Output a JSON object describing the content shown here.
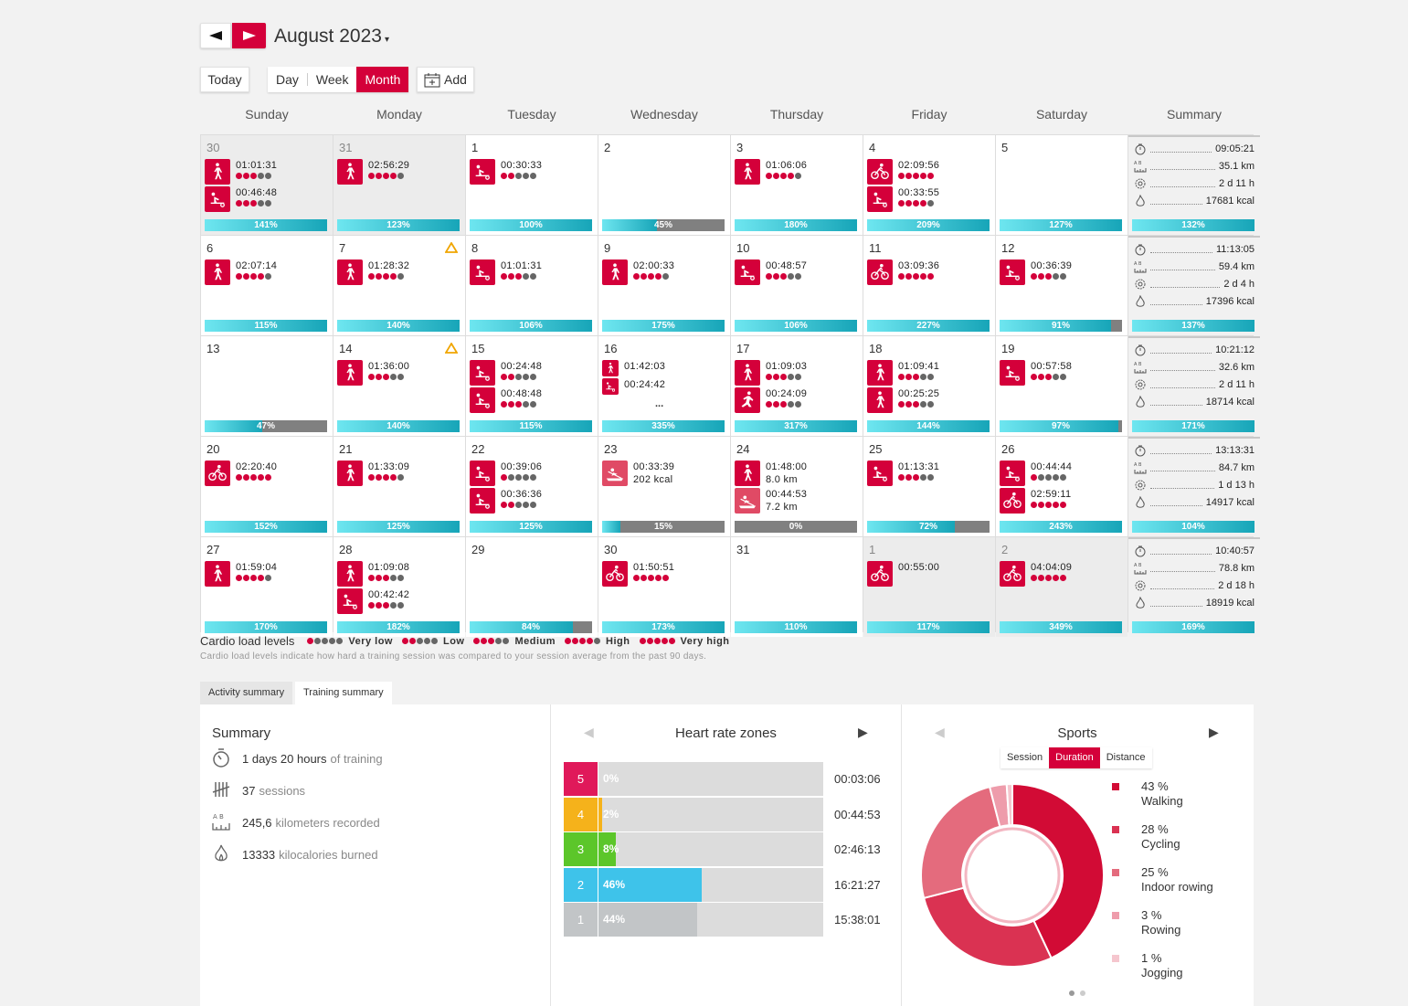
{
  "header": {
    "month": "August 2023",
    "prev_icon": "triangle-left-icon",
    "next_icon": "triangle-right-icon"
  },
  "toolbar": {
    "today": "Today",
    "day": "Day",
    "week": "Week",
    "month": "Month",
    "add": "Add"
  },
  "weekdays": [
    "Sunday",
    "Monday",
    "Tuesday",
    "Wednesday",
    "Thursday",
    "Friday",
    "Saturday",
    "Summary"
  ],
  "weeks": [
    {
      "days": [
        {
          "d": "30",
          "other": true,
          "s": [
            {
              "i": "walk",
              "t": "01:01:31",
              "l": 3
            },
            {
              "i": "row",
              "t": "00:46:48",
              "l": 3
            }
          ],
          "p": 141
        },
        {
          "d": "31",
          "other": true,
          "s": [
            {
              "i": "walk",
              "t": "02:56:29",
              "l": 4
            }
          ],
          "p": 123
        },
        {
          "d": "1",
          "s": [
            {
              "i": "row",
              "t": "00:30:33",
              "l": 2
            }
          ],
          "p": 100
        },
        {
          "d": "2",
          "s": [],
          "p": 45
        },
        {
          "d": "3",
          "s": [
            {
              "i": "walk",
              "t": "01:06:06",
              "l": 4
            }
          ],
          "p": 180
        },
        {
          "d": "4",
          "s": [
            {
              "i": "bike",
              "t": "02:09:56",
              "l": 5
            },
            {
              "i": "row",
              "t": "00:33:55",
              "l": 4
            }
          ],
          "p": 209
        },
        {
          "d": "5",
          "s": [],
          "p": 127
        }
      ],
      "sum": {
        "dur": "09:05:21",
        "dist": "35.1 km",
        "rec": "2 d 11 h",
        "kcal": "17681 kcal",
        "p": 132
      }
    },
    {
      "days": [
        {
          "d": "6",
          "s": [
            {
              "i": "walk",
              "t": "02:07:14",
              "l": 4
            }
          ],
          "p": 115
        },
        {
          "d": "7",
          "warn": true,
          "s": [
            {
              "i": "walk",
              "t": "01:28:32",
              "l": 4
            }
          ],
          "p": 140
        },
        {
          "d": "8",
          "s": [
            {
              "i": "row",
              "t": "01:01:31",
              "l": 3
            }
          ],
          "p": 106
        },
        {
          "d": "9",
          "s": [
            {
              "i": "walk",
              "t": "02:00:33",
              "l": 4
            }
          ],
          "p": 175
        },
        {
          "d": "10",
          "s": [
            {
              "i": "row",
              "t": "00:48:57",
              "l": 3
            }
          ],
          "p": 106
        },
        {
          "d": "11",
          "s": [
            {
              "i": "bike",
              "t": "03:09:36",
              "l": 5
            }
          ],
          "p": 227
        },
        {
          "d": "12",
          "s": [
            {
              "i": "row",
              "t": "00:36:39",
              "l": 3
            }
          ],
          "p": 91
        }
      ],
      "sum": {
        "dur": "11:13:05",
        "dist": "59.4 km",
        "rec": "2 d 4 h",
        "kcal": "17396 kcal",
        "p": 137
      }
    },
    {
      "days": [
        {
          "d": "13",
          "s": [],
          "p": 47
        },
        {
          "d": "14",
          "warn": true,
          "s": [
            {
              "i": "walk",
              "t": "01:36:00",
              "l": 3
            }
          ],
          "p": 140
        },
        {
          "d": "15",
          "s": [
            {
              "i": "row",
              "t": "00:24:48",
              "l": 2
            },
            {
              "i": "row",
              "t": "00:48:48",
              "l": 3
            }
          ],
          "p": 115
        },
        {
          "d": "16",
          "s": [
            {
              "i": "walk",
              "t": "01:42:03",
              "l": 0,
              "small": true
            },
            {
              "i": "row",
              "t": "00:24:42",
              "l": 0,
              "small": true
            }
          ],
          "more": "...",
          "p": 335
        },
        {
          "d": "17",
          "s": [
            {
              "i": "walk",
              "t": "01:09:03",
              "l": 3
            },
            {
              "i": "jog",
              "t": "00:24:09",
              "l": 3
            }
          ],
          "p": 317
        },
        {
          "d": "18",
          "s": [
            {
              "i": "walk",
              "t": "01:09:41",
              "l": 3
            },
            {
              "i": "walk",
              "t": "00:25:25",
              "l": 3
            }
          ],
          "p": 144
        },
        {
          "d": "19",
          "s": [
            {
              "i": "row",
              "t": "00:57:58",
              "l": 3
            }
          ],
          "p": 97
        }
      ],
      "sum": {
        "dur": "10:21:12",
        "dist": "32.6 km",
        "rec": "2 d 11 h",
        "kcal": "18714 kcal",
        "p": 171
      }
    },
    {
      "days": [
        {
          "d": "20",
          "s": [
            {
              "i": "bike",
              "t": "02:20:40",
              "l": 5
            }
          ],
          "p": 152
        },
        {
          "d": "21",
          "s": [
            {
              "i": "walk",
              "t": "01:33:09",
              "l": 4
            }
          ],
          "p": 125
        },
        {
          "d": "22",
          "s": [
            {
              "i": "row",
              "t": "00:39:06",
              "l": 1
            },
            {
              "i": "row",
              "t": "00:36:36",
              "l": 2
            }
          ],
          "p": 125
        },
        {
          "d": "23",
          "s": [
            {
              "i": "rowing",
              "t": "00:33:39",
              "t2": "202 kcal",
              "l": 0
            }
          ],
          "p": 15
        },
        {
          "d": "24",
          "s": [
            {
              "i": "walk",
              "t": "01:48:00",
              "t2": "8.0 km",
              "l": 0
            },
            {
              "i": "rowing",
              "t": "00:44:53",
              "t2": "7.2 km",
              "l": 0
            }
          ],
          "p": 0
        },
        {
          "d": "25",
          "s": [
            {
              "i": "row",
              "t": "01:13:31",
              "l": 3
            }
          ],
          "p": 72
        },
        {
          "d": "26",
          "s": [
            {
              "i": "row",
              "t": "00:44:44",
              "l": 1
            },
            {
              "i": "bike",
              "t": "02:59:11",
              "l": 5
            }
          ],
          "p": 243
        }
      ],
      "sum": {
        "dur": "13:13:31",
        "dist": "84.7 km",
        "rec": "1 d 13 h",
        "kcal": "14917 kcal",
        "p": 104
      }
    },
    {
      "days": [
        {
          "d": "27",
          "s": [
            {
              "i": "walk",
              "t": "01:59:04",
              "l": 4
            }
          ],
          "p": 170
        },
        {
          "d": "28",
          "s": [
            {
              "i": "walk",
              "t": "01:09:08",
              "l": 3
            },
            {
              "i": "row",
              "t": "00:42:42",
              "l": 3
            }
          ],
          "p": 182
        },
        {
          "d": "29",
          "s": [],
          "p": 84
        },
        {
          "d": "30",
          "s": [
            {
              "i": "bike",
              "t": "01:50:51",
              "l": 5
            }
          ],
          "p": 173
        },
        {
          "d": "31",
          "s": [],
          "p": 110
        },
        {
          "d": "1",
          "other": true,
          "s": [
            {
              "i": "bike",
              "t": "00:55:00",
              "l": 0
            }
          ],
          "p": 117
        },
        {
          "d": "2",
          "other": true,
          "s": [
            {
              "i": "bike",
              "t": "04:04:09",
              "l": 5
            }
          ],
          "p": 349
        }
      ],
      "sum": {
        "dur": "10:40:57",
        "dist": "78.8 km",
        "rec": "2 d 18 h",
        "kcal": "18919 kcal",
        "p": 169
      }
    }
  ],
  "legend": {
    "title": "Cardio load levels",
    "levels": [
      {
        "n": 1,
        "label": "Very low"
      },
      {
        "n": 2,
        "label": "Low"
      },
      {
        "n": 3,
        "label": "Medium"
      },
      {
        "n": 4,
        "label": "High"
      },
      {
        "n": 5,
        "label": "Very high"
      }
    ],
    "note": "Cardio load levels indicate how hard a training session was compared to your session average from the past 90 days."
  },
  "tabs": {
    "activity": "Activity summary",
    "training": "Training summary"
  },
  "summary": {
    "title": "Summary",
    "rows": [
      {
        "icon": "stopwatch-icon",
        "v": "1 days 20 hours",
        "u": "of training"
      },
      {
        "icon": "tally-icon",
        "v": "37",
        "u": "sessions"
      },
      {
        "icon": "distance-icon",
        "v": "245,6",
        "u": "kilometers recorded"
      },
      {
        "icon": "flame-icon",
        "v": "13333",
        "u": "kilocalories burned"
      }
    ]
  },
  "hr": {
    "title": "Heart rate zones",
    "zones": [
      {
        "z": "5",
        "pct": "0%",
        "v": 0,
        "time": "00:03:06",
        "color": "#e0195a",
        "fill": "#e0195a"
      },
      {
        "z": "4",
        "pct": "2%",
        "v": 2,
        "time": "00:44:53",
        "color": "#f5b21b",
        "fill": "#f5b21b"
      },
      {
        "z": "3",
        "pct": "8%",
        "v": 8,
        "time": "02:46:13",
        "color": "#5cc62a",
        "fill": "#5cc62a"
      },
      {
        "z": "2",
        "pct": "46%",
        "v": 46,
        "time": "16:21:27",
        "color": "#3ec3ea",
        "fill": "#3ec3ea"
      },
      {
        "z": "1",
        "pct": "44%",
        "v": 44,
        "time": "15:38:01",
        "color": "#c2c5c7",
        "fill": "#c2c5c7"
      }
    ]
  },
  "sports": {
    "title": "Sports",
    "tabs": [
      "Session",
      "Duration",
      "Distance"
    ],
    "items": [
      {
        "pct": "43 %",
        "v": 43,
        "name": "Walking",
        "color": "#d20b35"
      },
      {
        "pct": "28 %",
        "v": 28,
        "name": "Cycling",
        "color": "#da3252"
      },
      {
        "pct": "25 %",
        "v": 25,
        "name": "Indoor rowing",
        "color": "#e46b7d"
      },
      {
        "pct": "3 %",
        "v": 3,
        "name": "Rowing",
        "color": "#ee9cab"
      },
      {
        "pct": "1 %",
        "v": 1,
        "name": "Jogging",
        "color": "#f5c6ce"
      }
    ]
  }
}
